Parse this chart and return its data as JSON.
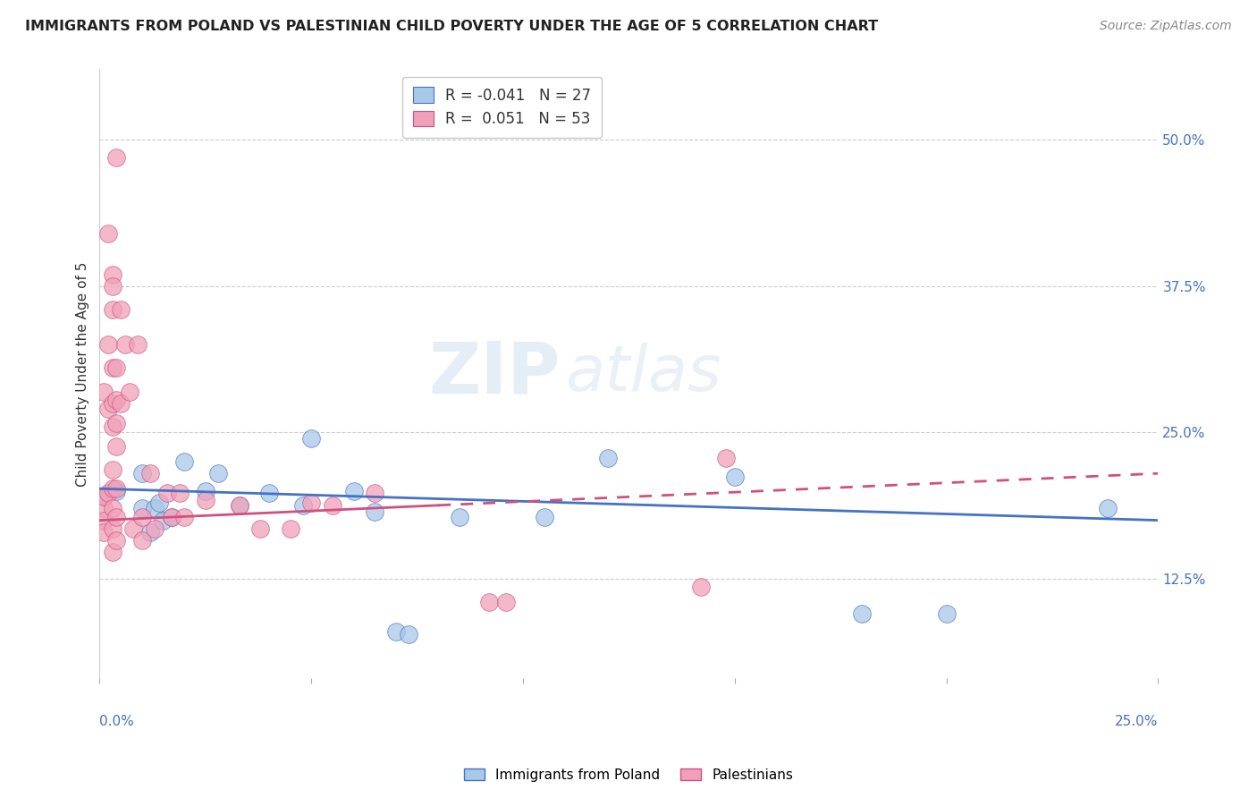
{
  "title": "IMMIGRANTS FROM POLAND VS PALESTINIAN CHILD POVERTY UNDER THE AGE OF 5 CORRELATION CHART",
  "source": "Source: ZipAtlas.com",
  "ylabel": "Child Poverty Under the Age of 5",
  "ytick_labels": [
    "12.5%",
    "25.0%",
    "37.5%",
    "50.0%"
  ],
  "ytick_values": [
    0.125,
    0.25,
    0.375,
    0.5
  ],
  "xmin": 0.0,
  "xmax": 0.25,
  "ymin": 0.04,
  "ymax": 0.56,
  "legend_label1": "Immigrants from Poland",
  "legend_label2": "Palestinians",
  "r1": -0.041,
  "n1": 27,
  "r2": 0.051,
  "n2": 53,
  "color_blue": "#A8C8E8",
  "color_pink": "#F0A0B8",
  "line_color_blue": "#4472C4",
  "line_color_pink": "#D05080",
  "watermark_zip": "ZIP",
  "watermark_atlas": "atlas",
  "blue_points": [
    [
      0.001,
      0.195
    ],
    [
      0.004,
      0.2
    ],
    [
      0.01,
      0.215
    ],
    [
      0.01,
      0.185
    ],
    [
      0.012,
      0.165
    ],
    [
      0.013,
      0.185
    ],
    [
      0.014,
      0.19
    ],
    [
      0.015,
      0.175
    ],
    [
      0.017,
      0.178
    ],
    [
      0.02,
      0.225
    ],
    [
      0.025,
      0.2
    ],
    [
      0.028,
      0.215
    ],
    [
      0.033,
      0.188
    ],
    [
      0.04,
      0.198
    ],
    [
      0.048,
      0.188
    ],
    [
      0.05,
      0.245
    ],
    [
      0.06,
      0.2
    ],
    [
      0.065,
      0.182
    ],
    [
      0.07,
      0.08
    ],
    [
      0.073,
      0.078
    ],
    [
      0.085,
      0.178
    ],
    [
      0.105,
      0.178
    ],
    [
      0.12,
      0.228
    ],
    [
      0.15,
      0.212
    ],
    [
      0.18,
      0.095
    ],
    [
      0.2,
      0.095
    ],
    [
      0.238,
      0.185
    ]
  ],
  "pink_points": [
    [
      0.001,
      0.285
    ],
    [
      0.001,
      0.185
    ],
    [
      0.001,
      0.195
    ],
    [
      0.001,
      0.175
    ],
    [
      0.001,
      0.165
    ],
    [
      0.002,
      0.42
    ],
    [
      0.002,
      0.325
    ],
    [
      0.002,
      0.27
    ],
    [
      0.002,
      0.198
    ],
    [
      0.003,
      0.385
    ],
    [
      0.003,
      0.375
    ],
    [
      0.003,
      0.355
    ],
    [
      0.003,
      0.305
    ],
    [
      0.003,
      0.275
    ],
    [
      0.003,
      0.255
    ],
    [
      0.003,
      0.218
    ],
    [
      0.003,
      0.202
    ],
    [
      0.003,
      0.185
    ],
    [
      0.003,
      0.168
    ],
    [
      0.003,
      0.148
    ],
    [
      0.004,
      0.485
    ],
    [
      0.004,
      0.305
    ],
    [
      0.004,
      0.278
    ],
    [
      0.004,
      0.258
    ],
    [
      0.004,
      0.238
    ],
    [
      0.004,
      0.202
    ],
    [
      0.004,
      0.178
    ],
    [
      0.004,
      0.158
    ],
    [
      0.005,
      0.355
    ],
    [
      0.005,
      0.275
    ],
    [
      0.006,
      0.325
    ],
    [
      0.007,
      0.285
    ],
    [
      0.008,
      0.168
    ],
    [
      0.009,
      0.325
    ],
    [
      0.01,
      0.178
    ],
    [
      0.01,
      0.158
    ],
    [
      0.012,
      0.215
    ],
    [
      0.013,
      0.168
    ],
    [
      0.016,
      0.198
    ],
    [
      0.017,
      0.178
    ],
    [
      0.019,
      0.198
    ],
    [
      0.02,
      0.178
    ],
    [
      0.025,
      0.192
    ],
    [
      0.033,
      0.188
    ],
    [
      0.038,
      0.168
    ],
    [
      0.045,
      0.168
    ],
    [
      0.05,
      0.19
    ],
    [
      0.055,
      0.188
    ],
    [
      0.065,
      0.198
    ],
    [
      0.092,
      0.105
    ],
    [
      0.096,
      0.105
    ],
    [
      0.142,
      0.118
    ],
    [
      0.148,
      0.228
    ]
  ],
  "blue_line": [
    0.0,
    0.25,
    0.202,
    0.175
  ],
  "pink_line": [
    0.0,
    0.25,
    0.175,
    0.215
  ]
}
